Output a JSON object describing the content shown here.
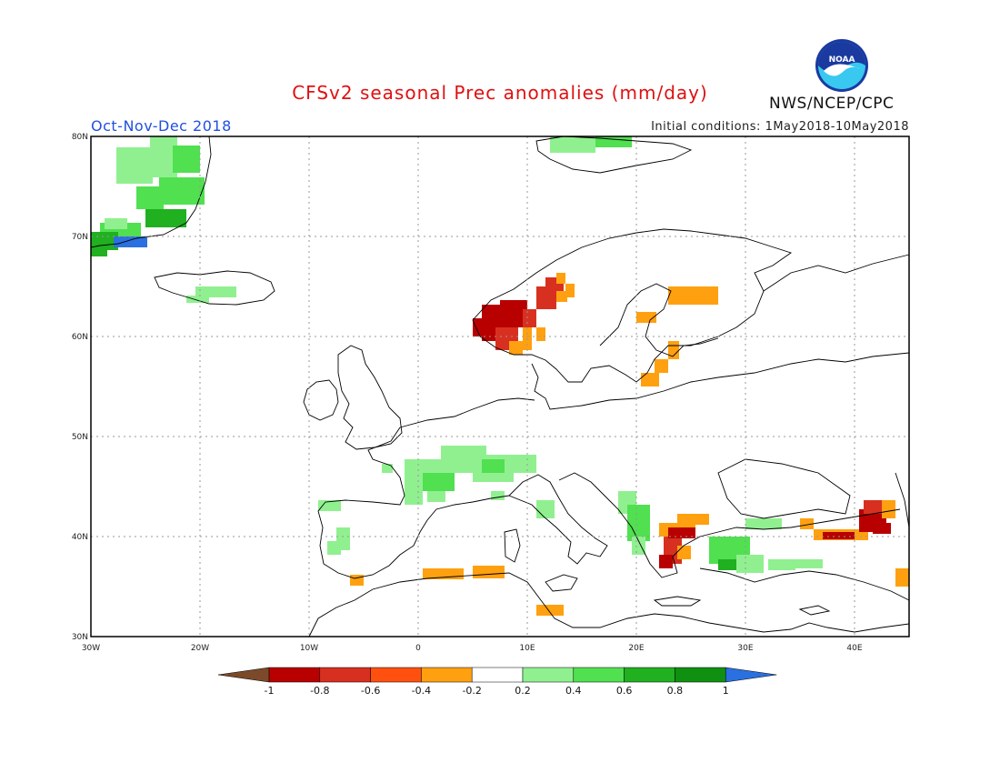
{
  "header": {
    "title": "CFSv2 seasonal Prec anomalies (mm/day)",
    "period": "Oct-Nov-Dec 2018",
    "initial_conditions": "Initial conditions: 1May2018-10May2018",
    "agency": "NWS/NCEP/CPC",
    "logo_text": "NOAA"
  },
  "map": {
    "region": "Europe",
    "lon_range": [
      -30,
      45
    ],
    "lat_range": [
      30,
      80
    ],
    "lon_ticks": [
      "30W",
      "20W",
      "10W",
      "0",
      "10E",
      "20E",
      "30E",
      "40E"
    ],
    "lat_ticks": [
      "30N",
      "40N",
      "50N",
      "60N",
      "70N",
      "80N"
    ],
    "grid": "dotted",
    "anomaly_regions": [
      {
        "name": "Greenland",
        "sign": "positive",
        "strength": "moderate"
      },
      {
        "name": "Iceland",
        "sign": "positive",
        "strength": "weak"
      },
      {
        "name": "Western Norway",
        "sign": "negative",
        "strength": "strong"
      },
      {
        "name": "Finland",
        "sign": "negative",
        "strength": "weak"
      },
      {
        "name": "France",
        "sign": "positive",
        "strength": "moderate"
      },
      {
        "name": "Alps",
        "sign": "positive",
        "strength": "weak"
      },
      {
        "name": "Western Balkans",
        "sign": "positive",
        "strength": "moderate"
      },
      {
        "name": "Greece / Aegean",
        "sign": "negative",
        "strength": "strong"
      },
      {
        "name": "Western Turkey",
        "sign": "positive",
        "strength": "moderate"
      },
      {
        "name": "Eastern Turkey / Caucasus",
        "sign": "negative",
        "strength": "strong"
      },
      {
        "name": "North Africa coast",
        "sign": "negative",
        "strength": "weak"
      }
    ]
  },
  "legend": {
    "labels": [
      "-1",
      "-0.8",
      "-0.6",
      "-0.4",
      "-0.2",
      "0.2",
      "0.4",
      "0.6",
      "0.8",
      "1"
    ],
    "colors": [
      "#7a4a2a",
      "#b80000",
      "#d83020",
      "#ff5010",
      "#ffa010",
      "#ffffff",
      "#90f090",
      "#50e050",
      "#20b020",
      "#109010",
      "#2a70e0"
    ]
  }
}
